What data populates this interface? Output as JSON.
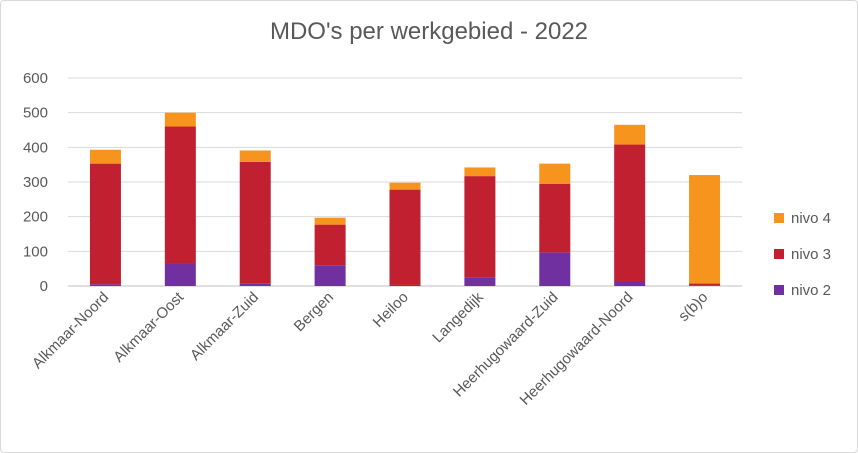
{
  "chart_data": {
    "type": "bar",
    "stacked": true,
    "title": "MDO's per werkgebied - 2022",
    "xlabel": "",
    "ylabel": "",
    "ylim": [
      0,
      600
    ],
    "yticks": [
      0,
      100,
      200,
      300,
      400,
      500,
      600
    ],
    "grid": true,
    "legend_position": "right",
    "categories": [
      "Alkmaar-Noord",
      "Alkmaar-Oost",
      "Alkmaar-Zuid",
      "Bergen",
      "Heiloo",
      "Langedijk",
      "Heerhugowaard-Zuid",
      "Heerhugowaard-Noord",
      "s(b)o"
    ],
    "series": [
      {
        "name": "nivo 2",
        "color": "#7030a0",
        "values": [
          5,
          65,
          8,
          60,
          3,
          25,
          97,
          13,
          2
        ]
      },
      {
        "name": "nivo 3",
        "color": "#c0202f",
        "values": [
          348,
          395,
          350,
          117,
          275,
          292,
          198,
          395,
          5
        ]
      },
      {
        "name": "nivo 4",
        "color": "#f7941d",
        "values": [
          40,
          40,
          33,
          20,
          20,
          25,
          58,
          57,
          313
        ]
      }
    ]
  }
}
